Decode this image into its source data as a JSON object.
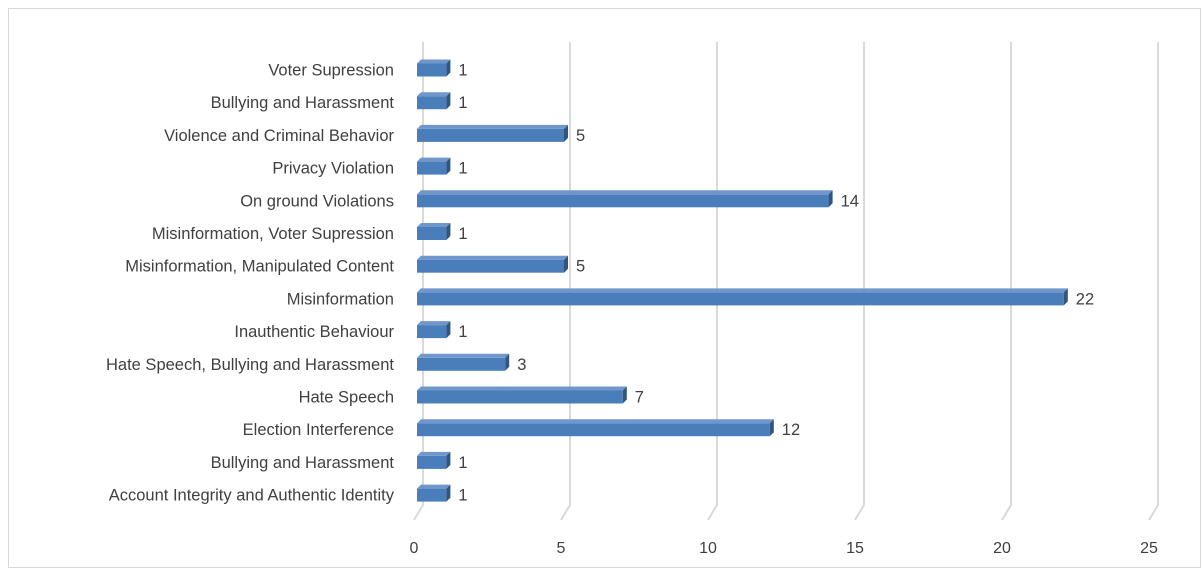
{
  "chart_data": {
    "type": "bar",
    "orientation": "horizontal",
    "style": "3d",
    "title": "",
    "xlabel": "",
    "ylabel": "",
    "categories": [
      "Voter Supression",
      "Bullying and Harassment",
      "Violence and Criminal Behavior",
      "Privacy Violation",
      "On ground Violations",
      "Misinformation, Voter Supression",
      "Misinformation, Manipulated Content",
      "Misinformation",
      "Inauthentic Behaviour",
      "Hate Speech, Bullying and Harassment",
      "Hate Speech",
      "Election Interference",
      "Bullying and Harassment",
      "Account Integrity and Authentic Identity"
    ],
    "values": [
      1,
      1,
      5,
      1,
      14,
      1,
      5,
      22,
      1,
      3,
      7,
      12,
      1,
      1
    ],
    "xlim": [
      0,
      25
    ],
    "xticks": [
      0,
      5,
      10,
      15,
      20,
      25
    ],
    "grid": "vertical",
    "legend": "none",
    "colors": {
      "bar_front": "#4a7ebb",
      "bar_top": "#6f97cb",
      "bar_side": "#2f5582",
      "grid": "#d9d9d9",
      "text": "#404040"
    }
  }
}
